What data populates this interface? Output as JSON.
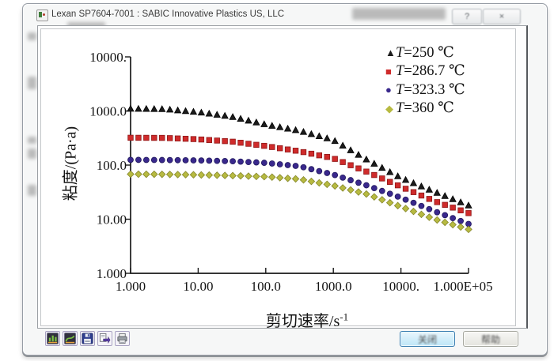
{
  "window": {
    "title": "Lexan SP7604-7001 : SABIC Innovative Plastics US, LLC",
    "help_glyph": "?",
    "close_glyph": "×"
  },
  "footer": {
    "close_label": "关闭",
    "help_label": "帮助",
    "toolbar_icons": [
      "bar-chart-icon",
      "curve-chart-icon",
      "save-icon",
      "export-icon",
      "print-icon"
    ]
  },
  "chart_data": {
    "type": "scatter",
    "xscale": "log",
    "yscale": "log",
    "xlabel": "剪切速率/s",
    "xlabel_sup": "-1",
    "ylabel": "粘度/(Pa·a)",
    "xlim": [
      1,
      100000
    ],
    "ylim": [
      1,
      10000
    ],
    "grid": false,
    "legend_position": "top-right",
    "xticks": [
      "1.000",
      "10.00",
      "100.0",
      "1000.0",
      "10000.",
      "1.000E+05"
    ],
    "yticks": [
      "10000.",
      "1000.0",
      "100.0",
      "10.00",
      "1.000"
    ],
    "x": [
      1,
      3.16,
      10,
      31.6,
      100,
      316,
      1000,
      3160,
      10000,
      31600,
      100000
    ],
    "series": [
      {
        "name": "T=250 ℃",
        "marker": "triangle",
        "color": "#1c1c1c",
        "edge": "#000000",
        "values": [
          1100,
          1080,
          950,
          780,
          560,
          430,
          290,
          125,
          58,
          32,
          18
        ]
      },
      {
        "name": "T=286.7 ℃",
        "marker": "square",
        "color": "#cf2b2b",
        "edge": "#8f1616",
        "values": [
          320,
          318,
          300,
          272,
          225,
          180,
          134,
          75,
          40,
          21.5,
          13
        ]
      },
      {
        "name": "T=323.3 ℃",
        "marker": "circle",
        "color": "#39288c",
        "edge": "#221a5e",
        "values": [
          125,
          124,
          122,
          118,
          110,
          95,
          67,
          42,
          25,
          14,
          8.2
        ]
      },
      {
        "name": "T=360 ℃",
        "marker": "diamond",
        "color": "#b7ba41",
        "edge": "#84862a",
        "values": [
          68,
          67.5,
          66,
          64,
          61,
          55,
          42,
          29,
          17,
          10,
          6.5
        ]
      }
    ]
  }
}
